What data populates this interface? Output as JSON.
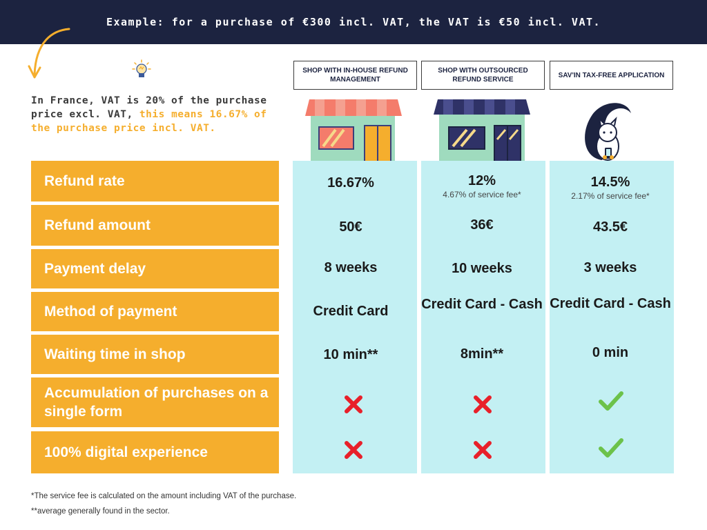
{
  "banner": "Example: for a purchase of €300 incl. VAT, the VAT is €50 incl. VAT.",
  "intro": {
    "line1": "In France, VAT is 20% of the purchase price excl. VAT,",
    "highlight": "this means 16.67% of the purchase price incl. VAT."
  },
  "columns": [
    {
      "label": "SHOP WITH IN-HOUSE REFUND MANAGEMENT"
    },
    {
      "label": "SHOP WITH OUTSOURCED REFUND SERVICE"
    },
    {
      "label": "SAV'IN TAX-FREE APPLICATION"
    }
  ],
  "rows": [
    {
      "label": "Refund rate",
      "values": [
        "16.67%",
        "12%",
        "14.5%"
      ],
      "subs": [
        "",
        "4.67% of service fee*",
        "2.17% of service fee*"
      ]
    },
    {
      "label": "Refund amount",
      "values": [
        "50€",
        "36€",
        "43.5€"
      ]
    },
    {
      "label": "Payment delay",
      "values": [
        "8 weeks",
        "10 weeks",
        "3 weeks"
      ]
    },
    {
      "label": "Method of payment",
      "values": [
        "Credit Card",
        "Credit Card - Cash",
        "Credit Card - Cash"
      ]
    },
    {
      "label": "Waiting time in shop",
      "values": [
        "10 min**",
        "8min**",
        "0 min"
      ]
    },
    {
      "label": "Accumulation of purchases on a single form",
      "marks": [
        "cross",
        "cross",
        "check"
      ]
    },
    {
      "label": "100% digital experience",
      "marks": [
        "cross",
        "cross",
        "check"
      ]
    }
  ],
  "footnotes": [
    "*The service fee is calculated on the amount including VAT of the purchase.",
    "**average generally found in the sector."
  ],
  "colors": {
    "navy": "#1c2340",
    "orange": "#f5ae2d",
    "cyan": "#c3f0f3",
    "red": "#e8202a",
    "green": "#6cc24a"
  },
  "icons": [
    "curved-arrow-icon",
    "lightbulb-icon",
    "shop-red-awning-icon",
    "shop-navy-awning-icon",
    "squirrel-phone-icon",
    "cross-icon",
    "check-icon"
  ]
}
